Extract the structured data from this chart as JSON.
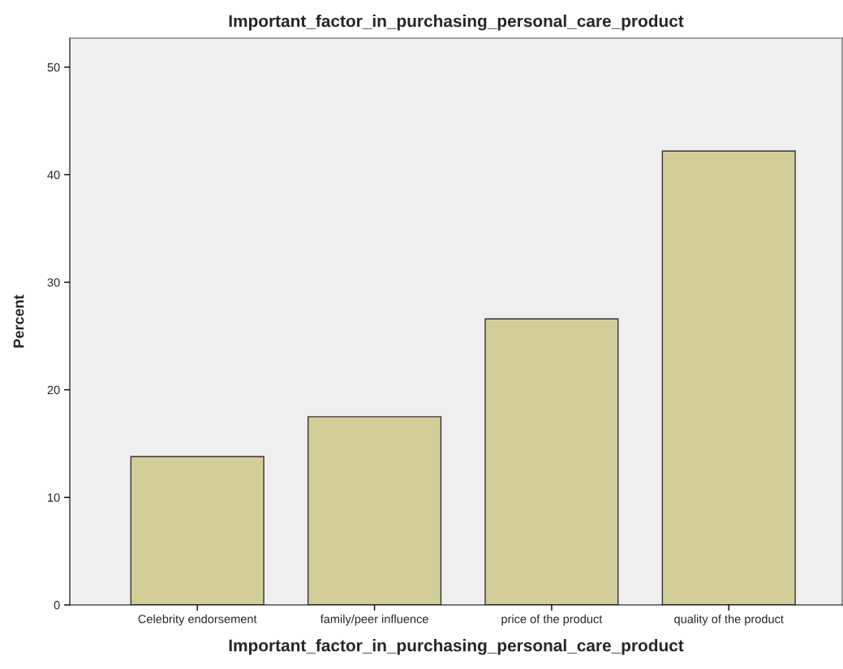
{
  "chart_data": {
    "type": "bar",
    "title": "Important_factor_in_purchasing_personal_care_product",
    "xlabel": "Important_factor_in_purchasing_personal_care_product",
    "ylabel": "Percent",
    "categories": [
      "Celebrity endorsement",
      "family/peer influence",
      "price of the product",
      "quality of the product"
    ],
    "values": [
      13.8,
      17.5,
      26.6,
      42.2
    ],
    "color": "#d3ce97",
    "ylim": [
      0,
      52.7
    ],
    "yticks": [
      0,
      10,
      20,
      30,
      40,
      50
    ],
    "grid": false
  }
}
